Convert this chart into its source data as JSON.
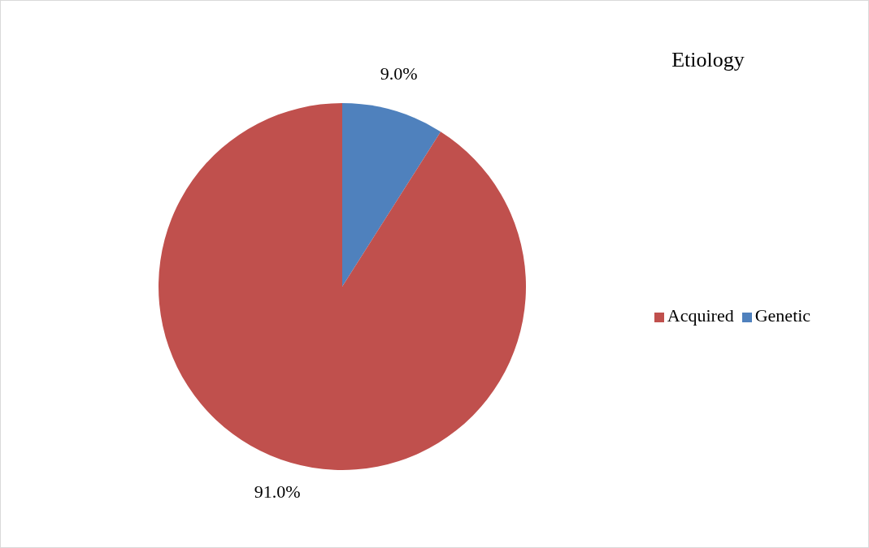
{
  "chart_data": {
    "type": "pie",
    "title": "Etiology",
    "categories": [
      "Genetic",
      "Acquired"
    ],
    "values": [
      9.0,
      91.0
    ],
    "colors": [
      "#4f81bd",
      "#c0504d"
    ],
    "value_labels": [
      "9.0%",
      "91.0%"
    ],
    "legend": "right"
  }
}
